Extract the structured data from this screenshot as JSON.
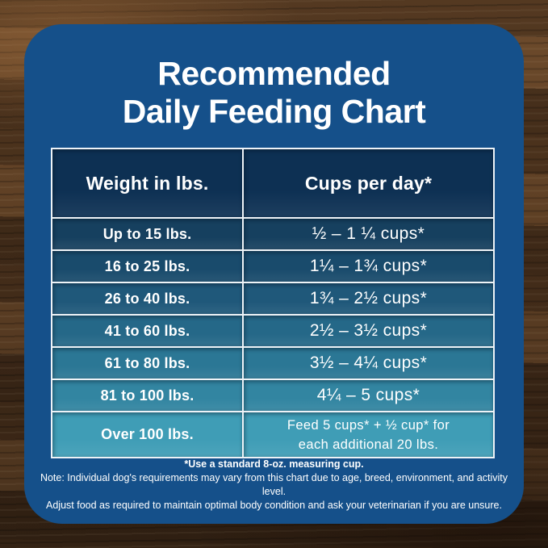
{
  "title": {
    "line1": "Recommended",
    "line2": "Daily Feeding Chart"
  },
  "chart_data": {
    "type": "table",
    "title": "Recommended Daily Feeding Chart",
    "columns": [
      "Weight in lbs.",
      "Cups per day*"
    ],
    "rows": [
      [
        "Up to 15 lbs.",
        "½ – 1 ¼ cups*"
      ],
      [
        "16 to 25 lbs.",
        "1¼ – 1¾ cups*"
      ],
      [
        "26 to 40 lbs.",
        "1¾ – 2½ cups*"
      ],
      [
        "41 to 60 lbs.",
        "2½ – 3½ cups*"
      ],
      [
        "61 to 80 lbs.",
        "3½ – 4¼ cups*"
      ],
      [
        "81 to 100 lbs.",
        "4¼ – 5 cups*"
      ],
      [
        "Over 100 lbs.",
        "Feed 5 cups* + ½ cup* for each additional 20 lbs."
      ]
    ]
  },
  "table": {
    "headers": [
      "Weight in lbs.",
      "Cups per day*"
    ],
    "rows": [
      {
        "weight": "Up to 15 lbs.",
        "cups": "½ – 1 ¼ cups*"
      },
      {
        "weight": "16 to 25 lbs.",
        "cups": "1¼ – 1¾ cups*"
      },
      {
        "weight": "26 to 40 lbs.",
        "cups": "1¾ – 2½ cups*"
      },
      {
        "weight": "41 to 60 lbs.",
        "cups": "2½ – 3½ cups*"
      },
      {
        "weight": "61 to 80 lbs.",
        "cups": "3½ – 4¼ cups*"
      },
      {
        "weight": "81 to 100 lbs.",
        "cups": "4¼ – 5 cups*"
      },
      {
        "weight": "Over 100 lbs.",
        "cups_line1": "Feed 5 cups* + ½ cup* for",
        "cups_line2": "each additional 20 lbs."
      }
    ]
  },
  "notes": {
    "line1": "*Use a standard 8-oz. measuring cup.",
    "line2": "Note: Individual dog's requirements may vary from this chart due to age, breed, environment, and activity level.",
    "line3": "Adjust food as required to maintain optimal body condition and ask your veterinarian if you are unsure."
  },
  "colors": {
    "card_blue": "#15508a",
    "header_navy": "#0d3053",
    "border_white": "#eef3f7",
    "text_white": "#ffffff",
    "row_colors": [
      "#16405f",
      "#194b6c",
      "#1f587a",
      "#256888",
      "#2b7795",
      "#3285a1",
      "#3f9db6"
    ]
  }
}
